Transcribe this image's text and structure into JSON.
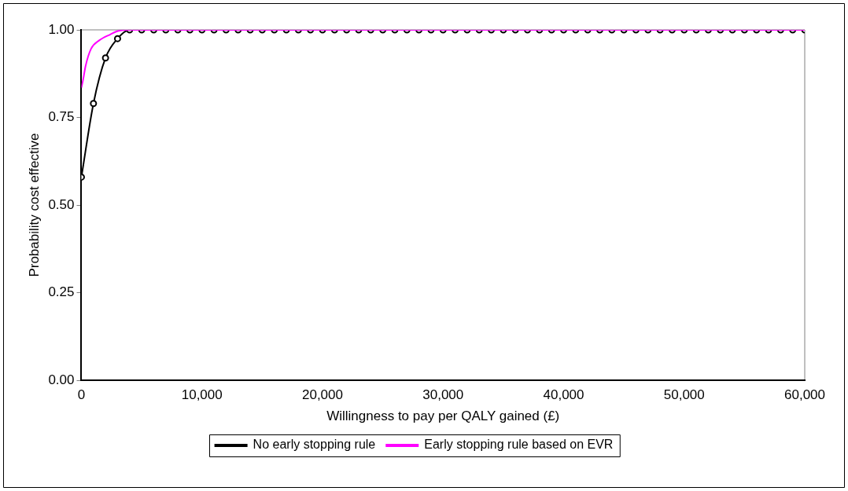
{
  "chart_data": {
    "type": "line",
    "xlabel": "Willingness to pay per QALY gained (£)",
    "ylabel": "Probability cost effective",
    "xlim": [
      0,
      60000
    ],
    "xticks": [
      {
        "value": 0,
        "label": "0"
      },
      {
        "value": 10000,
        "label": "10,000"
      },
      {
        "value": 20000,
        "label": "20,000"
      },
      {
        "value": 30000,
        "label": "30,000"
      },
      {
        "value": 40000,
        "label": "40,000"
      },
      {
        "value": 50000,
        "label": "50,000"
      },
      {
        "value": 60000,
        "label": "60,000"
      }
    ],
    "ylim": [
      0,
      1
    ],
    "yticks": [
      {
        "value": 0,
        "label": "0.00"
      },
      {
        "value": 0.25,
        "label": "0.25"
      },
      {
        "value": 0.5,
        "label": "0.50"
      },
      {
        "value": 0.75,
        "label": "0.75"
      },
      {
        "value": 1,
        "label": "1.00"
      }
    ],
    "grid": false,
    "legend": "bottom",
    "series": [
      {
        "name": "No early stopping rule",
        "color": "#000000",
        "marker": "circle",
        "x": [
          0,
          1000,
          2000,
          3000,
          4000,
          5000,
          6000,
          7000,
          8000,
          9000,
          10000,
          11000,
          12000,
          13000,
          14000,
          15000,
          16000,
          17000,
          18000,
          19000,
          20000,
          21000,
          22000,
          23000,
          24000,
          25000,
          26000,
          27000,
          28000,
          29000,
          30000,
          31000,
          32000,
          33000,
          34000,
          35000,
          36000,
          37000,
          38000,
          39000,
          40000,
          41000,
          42000,
          43000,
          44000,
          45000,
          46000,
          47000,
          48000,
          49000,
          50000,
          51000,
          52000,
          53000,
          54000,
          55000,
          56000,
          57000,
          58000,
          59000,
          60000
        ],
        "values": [
          0.58,
          0.79,
          0.92,
          0.975,
          1,
          1,
          1,
          1,
          1,
          1,
          1,
          1,
          1,
          1,
          1,
          1,
          1,
          1,
          1,
          1,
          1,
          1,
          1,
          1,
          1,
          1,
          1,
          1,
          1,
          1,
          1,
          1,
          1,
          1,
          1,
          1,
          1,
          1,
          1,
          1,
          1,
          1,
          1,
          1,
          1,
          1,
          1,
          1,
          1,
          1,
          1,
          1,
          1,
          1,
          1,
          1,
          1,
          1,
          1,
          1,
          1
        ]
      },
      {
        "name": "Early stopping rule based on EVR",
        "color": "#ff00ff",
        "marker": "none",
        "x": [
          0,
          150,
          340,
          800,
          1480,
          2400,
          3080,
          4000,
          60000
        ],
        "values": [
          0.835,
          0.859,
          0.896,
          0.946,
          0.97,
          0.987,
          0.997,
          1,
          1
        ]
      }
    ]
  }
}
